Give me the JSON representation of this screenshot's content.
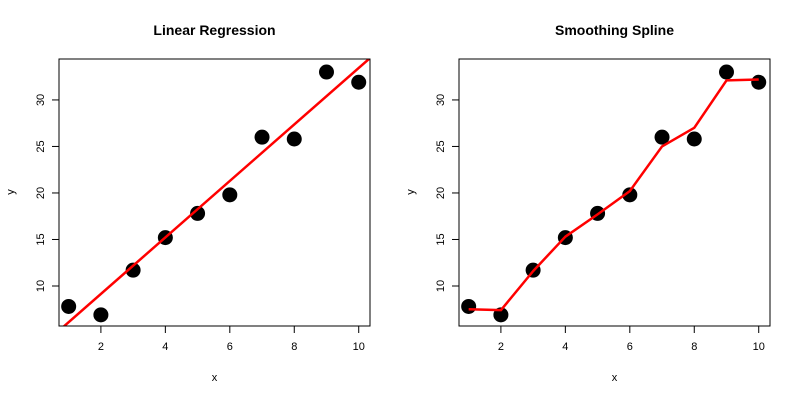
{
  "chart_data": [
    {
      "type": "scatter",
      "title": "Linear Regression",
      "xlabel": "x",
      "ylabel": "y",
      "xlim": [
        0.7,
        10.35
      ],
      "ylim": [
        5.7,
        34.4
      ],
      "xticks": [
        2,
        4,
        6,
        8,
        10
      ],
      "yticks": [
        10,
        15,
        20,
        25,
        30
      ],
      "points": {
        "x": [
          1,
          2,
          3,
          4,
          5,
          6,
          7,
          8,
          9,
          10
        ],
        "y": [
          7.8,
          6.9,
          11.7,
          15.2,
          17.8,
          19.8,
          26.0,
          25.8,
          33.0,
          31.9
        ]
      },
      "fit": {
        "name": "",
        "color": "#ff0000",
        "x": [
          0.7,
          10.35
        ],
        "y": [
          5.2,
          34.5
        ]
      },
      "grid": false,
      "point_color": "#000000"
    },
    {
      "type": "scatter",
      "title": "Smoothing Spline",
      "xlabel": "x",
      "ylabel": "y",
      "xlim": [
        0.7,
        10.35
      ],
      "ylim": [
        5.7,
        34.4
      ],
      "xticks": [
        2,
        4,
        6,
        8,
        10
      ],
      "yticks": [
        10,
        15,
        20,
        25,
        30
      ],
      "points": {
        "x": [
          1,
          2,
          3,
          4,
          5,
          6,
          7,
          8,
          9,
          10
        ],
        "y": [
          7.8,
          6.9,
          11.7,
          15.2,
          17.8,
          19.8,
          26.0,
          25.8,
          33.0,
          31.9
        ]
      },
      "fit": {
        "name": "",
        "color": "#ff0000",
        "x": [
          1,
          2,
          3,
          4,
          5,
          6,
          7,
          8,
          9,
          10
        ],
        "y": [
          7.5,
          7.4,
          11.6,
          15.3,
          17.7,
          20.2,
          25.0,
          27.0,
          32.1,
          32.2
        ]
      },
      "grid": false,
      "point_color": "#000000"
    }
  ]
}
